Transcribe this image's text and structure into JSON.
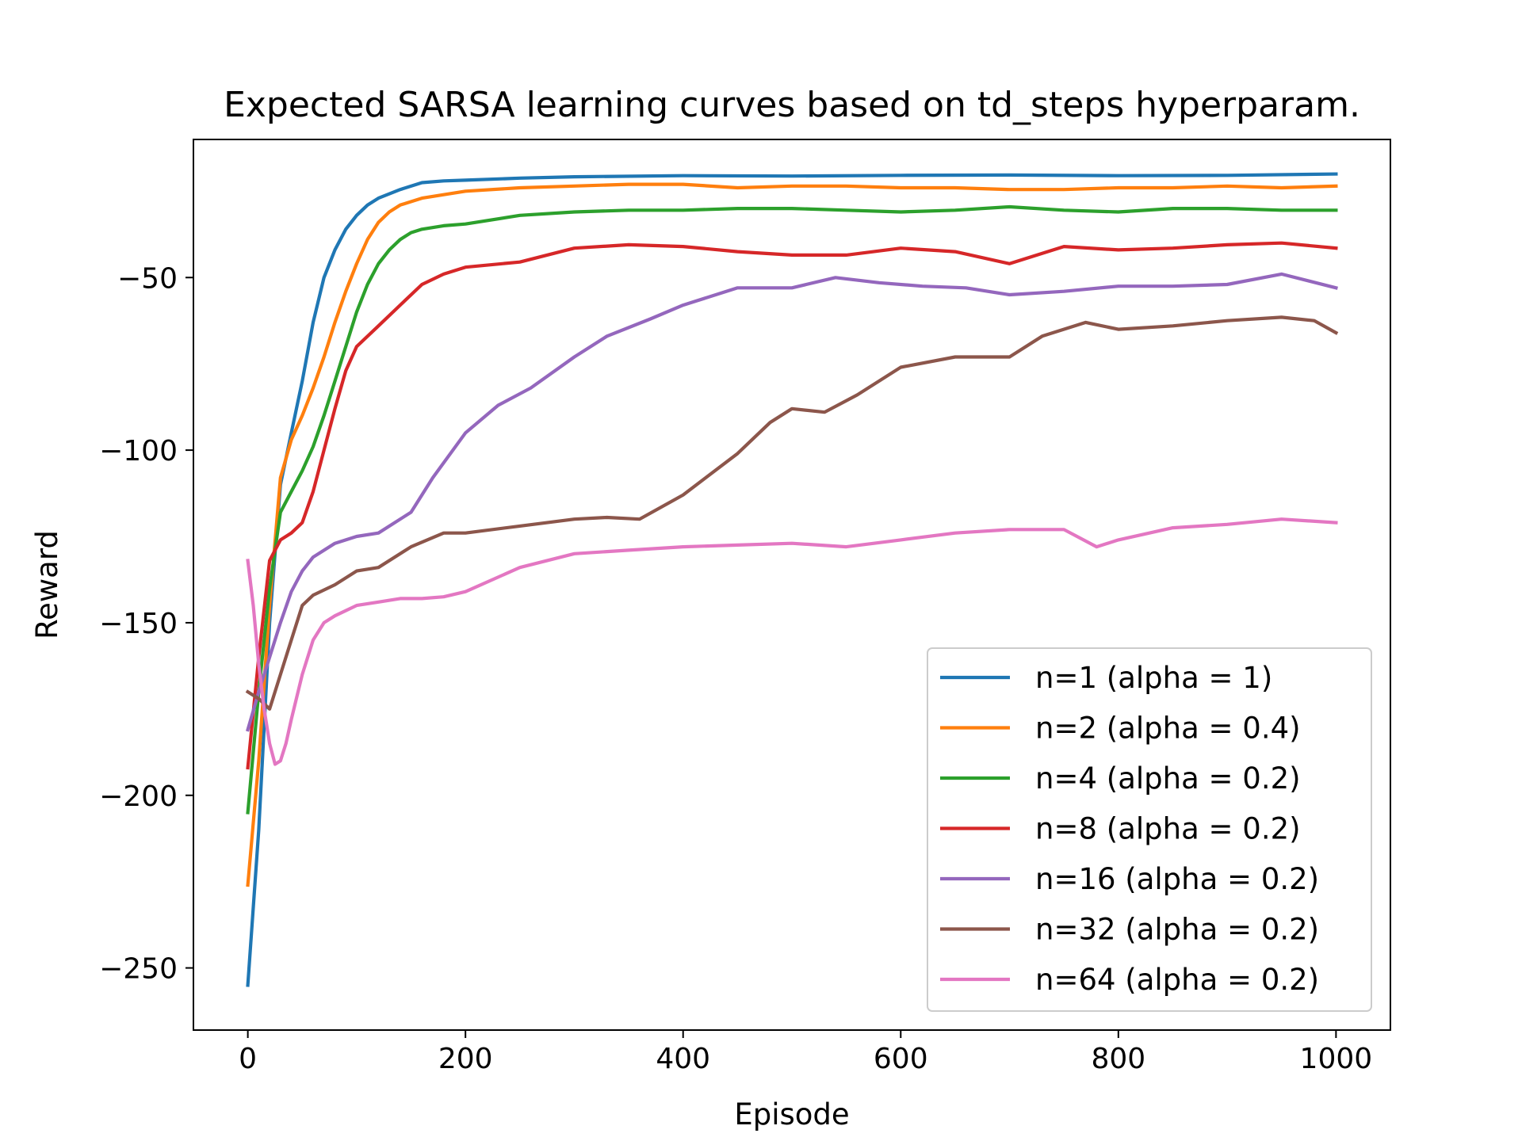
{
  "chart_data": {
    "type": "line",
    "title": "Expected SARSA learning curves based on td_steps hyperparam.",
    "xlabel": "Episode",
    "ylabel": "Reward",
    "xlim": [
      -50,
      1050
    ],
    "ylim": [
      -268,
      -10
    ],
    "xticks": [
      0,
      200,
      400,
      600,
      800,
      1000
    ],
    "xtick_labels": [
      "0",
      "200",
      "400",
      "600",
      "800",
      "1000"
    ],
    "yticks": [
      -50,
      -100,
      -150,
      -200,
      -250
    ],
    "ytick_labels": [
      "−50",
      "−100",
      "−150",
      "−200",
      "−250"
    ],
    "grid": false,
    "legend_position": "lower-right",
    "series": [
      {
        "name": "n=1 (alpha = 1)",
        "color": "#1f77b4",
        "x": [
          0,
          10,
          20,
          30,
          40,
          50,
          60,
          70,
          80,
          90,
          100,
          110,
          120,
          140,
          160,
          180,
          200,
          250,
          300,
          400,
          500,
          600,
          700,
          800,
          900,
          1000
        ],
        "y": [
          -255,
          -210,
          -150,
          -110,
          -95,
          -80,
          -63,
          -50,
          -42,
          -36,
          -32,
          -29,
          -27,
          -24.5,
          -22.5,
          -22,
          -21.8,
          -21.2,
          -20.8,
          -20.5,
          -20.6,
          -20.4,
          -20.3,
          -20.5,
          -20.4,
          -20.0
        ]
      },
      {
        "name": "n=2 (alpha = 0.4)",
        "color": "#ff7f0e",
        "x": [
          0,
          10,
          20,
          30,
          40,
          50,
          60,
          70,
          80,
          90,
          100,
          110,
          120,
          130,
          140,
          160,
          180,
          200,
          250,
          300,
          350,
          400,
          450,
          500,
          550,
          600,
          650,
          700,
          750,
          800,
          850,
          900,
          950,
          1000
        ],
        "y": [
          -226,
          -190,
          -145,
          -108,
          -97,
          -90,
          -82,
          -73,
          -63,
          -54,
          -46,
          -39,
          -34,
          -31,
          -29,
          -27,
          -26,
          -25,
          -24,
          -23.5,
          -23,
          -23,
          -24,
          -23.5,
          -23.5,
          -24,
          -24,
          -24.5,
          -24.5,
          -24,
          -24,
          -23.5,
          -24,
          -23.5
        ]
      },
      {
        "name": "n=4 (alpha = 0.2)",
        "color": "#2ca02c",
        "x": [
          0,
          10,
          20,
          30,
          40,
          50,
          60,
          70,
          80,
          90,
          100,
          110,
          120,
          130,
          140,
          150,
          160,
          180,
          200,
          250,
          300,
          350,
          400,
          450,
          500,
          550,
          600,
          650,
          700,
          750,
          800,
          850,
          900,
          950,
          1000
        ],
        "y": [
          -205,
          -170,
          -140,
          -118,
          -112,
          -106,
          -99,
          -90,
          -80,
          -70,
          -60,
          -52,
          -46,
          -42,
          -39,
          -37,
          -36,
          -35,
          -34.5,
          -32,
          -31,
          -30.5,
          -30.5,
          -30,
          -30,
          -30.5,
          -31,
          -30.5,
          -29.5,
          -30.5,
          -31,
          -30,
          -30,
          -30.5,
          -30.5
        ]
      },
      {
        "name": "n=8 (alpha = 0.2)",
        "color": "#d62728",
        "x": [
          0,
          10,
          20,
          30,
          40,
          50,
          60,
          70,
          80,
          90,
          100,
          120,
          140,
          160,
          180,
          200,
          250,
          300,
          350,
          400,
          450,
          500,
          550,
          600,
          650,
          700,
          750,
          800,
          850,
          900,
          950,
          1000
        ],
        "y": [
          -192,
          -160,
          -132,
          -126,
          -124,
          -121,
          -112,
          -100,
          -88,
          -77,
          -70,
          -64,
          -58,
          -52,
          -49,
          -47,
          -45.5,
          -41.5,
          -40.5,
          -41,
          -42.5,
          -43.5,
          -43.5,
          -41.5,
          -42.5,
          -46,
          -41,
          -42,
          -41.5,
          -40.5,
          -40,
          -41.5
        ]
      },
      {
        "name": "n=16 (alpha = 0.2)",
        "color": "#9467bd",
        "x": [
          0,
          10,
          20,
          30,
          40,
          50,
          60,
          80,
          100,
          120,
          150,
          170,
          200,
          230,
          260,
          300,
          330,
          370,
          400,
          450,
          500,
          540,
          580,
          620,
          660,
          700,
          750,
          800,
          850,
          900,
          950,
          1000
        ],
        "y": [
          -181,
          -170,
          -160,
          -150,
          -141,
          -135,
          -131,
          -127,
          -125,
          -124,
          -118,
          -108,
          -95,
          -87,
          -82,
          -73,
          -67,
          -62,
          -58,
          -53,
          -53,
          -50,
          -51.5,
          -52.5,
          -53,
          -55,
          -54,
          -52.5,
          -52.5,
          -52,
          -49,
          -53
        ]
      },
      {
        "name": "n=32 (alpha = 0.2)",
        "color": "#8c564b",
        "x": [
          0,
          10,
          20,
          30,
          40,
          50,
          60,
          80,
          100,
          120,
          150,
          180,
          200,
          250,
          300,
          330,
          360,
          400,
          450,
          480,
          500,
          530,
          560,
          600,
          650,
          700,
          730,
          770,
          800,
          850,
          900,
          950,
          980,
          1000
        ],
        "y": [
          -170,
          -172,
          -175,
          -165,
          -155,
          -145,
          -142,
          -139,
          -135,
          -134,
          -128,
          -124,
          -124,
          -122,
          -120,
          -119.5,
          -120,
          -113,
          -101,
          -92,
          -88,
          -89,
          -84,
          -76,
          -73,
          -73,
          -67,
          -63,
          -65,
          -64,
          -62.5,
          -61.5,
          -62.5,
          -66
        ]
      },
      {
        "name": "n=64 (alpha = 0.2)",
        "color": "#e377c2",
        "x": [
          0,
          5,
          10,
          15,
          20,
          25,
          30,
          35,
          40,
          50,
          60,
          70,
          80,
          100,
          120,
          140,
          160,
          180,
          200,
          250,
          300,
          350,
          400,
          450,
          500,
          550,
          600,
          650,
          700,
          750,
          780,
          800,
          850,
          900,
          950,
          1000
        ],
        "y": [
          -132,
          -145,
          -162,
          -175,
          -185,
          -191,
          -190,
          -185,
          -178,
          -165,
          -155,
          -150,
          -148,
          -145,
          -144,
          -143,
          -143,
          -142.5,
          -141,
          -134,
          -130,
          -129,
          -128,
          -127.5,
          -127,
          -128,
          -126,
          -124,
          -123,
          -123,
          -128,
          -126,
          -122.5,
          -121.5,
          -120,
          -121
        ]
      }
    ]
  }
}
